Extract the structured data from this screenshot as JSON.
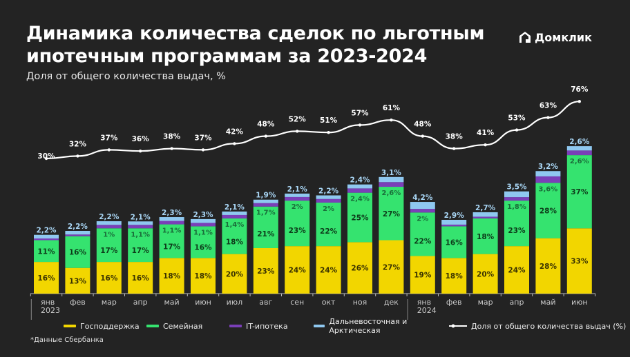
{
  "header": {
    "title_line1": "Динамика количества сделок по льготным",
    "title_line2": "ипотечным программам за 2023-2024",
    "subtitle": "Доля от общего количества выдач, %",
    "logo_text": "Домклик"
  },
  "footnote": "*Данные Сбербанка",
  "chart_data": {
    "type": "bar",
    "stacked": true,
    "categories": [
      "янв",
      "фев",
      "мар",
      "апр",
      "май",
      "июн",
      "июл",
      "авг",
      "сен",
      "окт",
      "ноя",
      "дек",
      "янв",
      "фев",
      "мар",
      "апр",
      "май",
      "июн"
    ],
    "year_labels": [
      {
        "index": 0,
        "label": "2023"
      },
      {
        "index": 12,
        "label": "2024"
      }
    ],
    "series": [
      {
        "name": "Господдержка",
        "color": "#f2d600",
        "values": [
          16,
          13,
          16,
          16,
          18,
          18,
          20,
          23,
          24,
          24,
          26,
          27,
          19,
          18,
          20,
          24,
          28,
          33
        ],
        "labels": [
          "16%",
          "13%",
          "16%",
          "16%",
          "18%",
          "18%",
          "20%",
          "23%",
          "24%",
          "24%",
          "26%",
          "27%",
          "19%",
          "18%",
          "20%",
          "24%",
          "28%",
          "33%"
        ]
      },
      {
        "name": "Семейная",
        "color": "#35e36f",
        "values": [
          11,
          16,
          17,
          17,
          17,
          16,
          18,
          21,
          23,
          22,
          25,
          27,
          22,
          16,
          18,
          23,
          28,
          37
        ],
        "labels": [
          "11%",
          "16%",
          "17%",
          "17%",
          "17%",
          "16%",
          "18%",
          "21%",
          "23%",
          "22%",
          "25%",
          "27%",
          "22%",
          "16%",
          "18%",
          "23%",
          "28%",
          "37%"
        ]
      },
      {
        "name": "IT-ипотека",
        "color": "#7a3fb8",
        "values": [
          null,
          null,
          1,
          1.1,
          1.1,
          1.1,
          1.4,
          1.7,
          2,
          2,
          2.4,
          2.6,
          2,
          null,
          null,
          1.8,
          3.6,
          2.6
        ],
        "labels": [
          null,
          null,
          "1%",
          "1,1%",
          "1,1%",
          "1,1%",
          "1,4%",
          "1,7%",
          "2%",
          "2%",
          "2,4%",
          "2,6%",
          "2%",
          null,
          null,
          "1,8%",
          "3,6%",
          "2,6%"
        ]
      },
      {
        "name": "Дальневосточная и Арктическая",
        "color": "#8fc8f0",
        "values": [
          2.2,
          2.2,
          2.2,
          2.1,
          2.3,
          2.3,
          2.1,
          1.9,
          2.1,
          2.2,
          2.4,
          3.1,
          4.2,
          2.9,
          2.7,
          3.5,
          3.2,
          2.6
        ],
        "labels": [
          "2,2%",
          "2,2%",
          "2,2%",
          "2,1%",
          "2,3%",
          "2,3%",
          "2,1%",
          "1,9%",
          "2,1%",
          "2,2%",
          "2,4%",
          "3,1%",
          "4,2%",
          "2,9%",
          "2,7%",
          "3,5%",
          "3,2%",
          "2,6%"
        ]
      }
    ],
    "line": {
      "name": "Доля от общего количества выдач (%)",
      "color": "#ffffff",
      "values": [
        30,
        32,
        37,
        36,
        38,
        37,
        42,
        48,
        52,
        51,
        57,
        61,
        48,
        38,
        41,
        53,
        63,
        76
      ],
      "labels": [
        "30%",
        "32%",
        "37%",
        "36%",
        "38%",
        "37%",
        "42%",
        "48%",
        "52%",
        "51%",
        "57%",
        "61%",
        "48%",
        "38%",
        "41%",
        "53%",
        "63%",
        "76%"
      ]
    },
    "legend_position": "bottom",
    "grid": false
  }
}
